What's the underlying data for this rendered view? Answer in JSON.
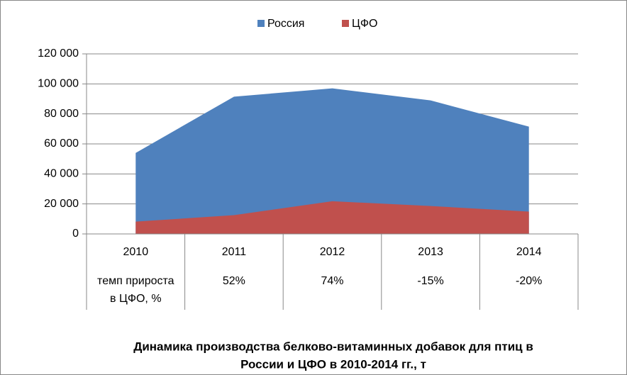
{
  "chart_data": {
    "type": "area",
    "title": [
      "Динамика производства белково-витаминных добавок для птиц в",
      "России и ЦФО в 2010-2014 гг., т"
    ],
    "categories": [
      "2010",
      "2011",
      "2012",
      "2013",
      "2014"
    ],
    "series": [
      {
        "name": "Россия",
        "color": "#4f81bd",
        "values": [
          54000,
          91500,
          97000,
          89000,
          71500
        ]
      },
      {
        "name": "ЦФО",
        "color": "#c0504d",
        "values": [
          8200,
          12500,
          21800,
          18600,
          14900
        ]
      }
    ],
    "ylim": [
      0,
      120000
    ],
    "yticks": [
      0,
      {
        "value": 20000,
        "label": "20 000"
      },
      {
        "value": 40000,
        "label": "40 000"
      },
      {
        "value": 60000,
        "label": "60 000"
      },
      {
        "value": 80000,
        "label": "80 000"
      },
      {
        "value": 100000,
        "label": "100 000"
      },
      {
        "value": 120000,
        "label": "120 000"
      }
    ],
    "grid": true,
    "legend": "top",
    "growth_row": {
      "label": [
        "темп прироста",
        "в ЦФО, %"
      ],
      "values": [
        52,
        74,
        -15,
        -20
      ],
      "value_labels": [
        "52%",
        "74%",
        "-15%",
        "-20%"
      ]
    }
  }
}
